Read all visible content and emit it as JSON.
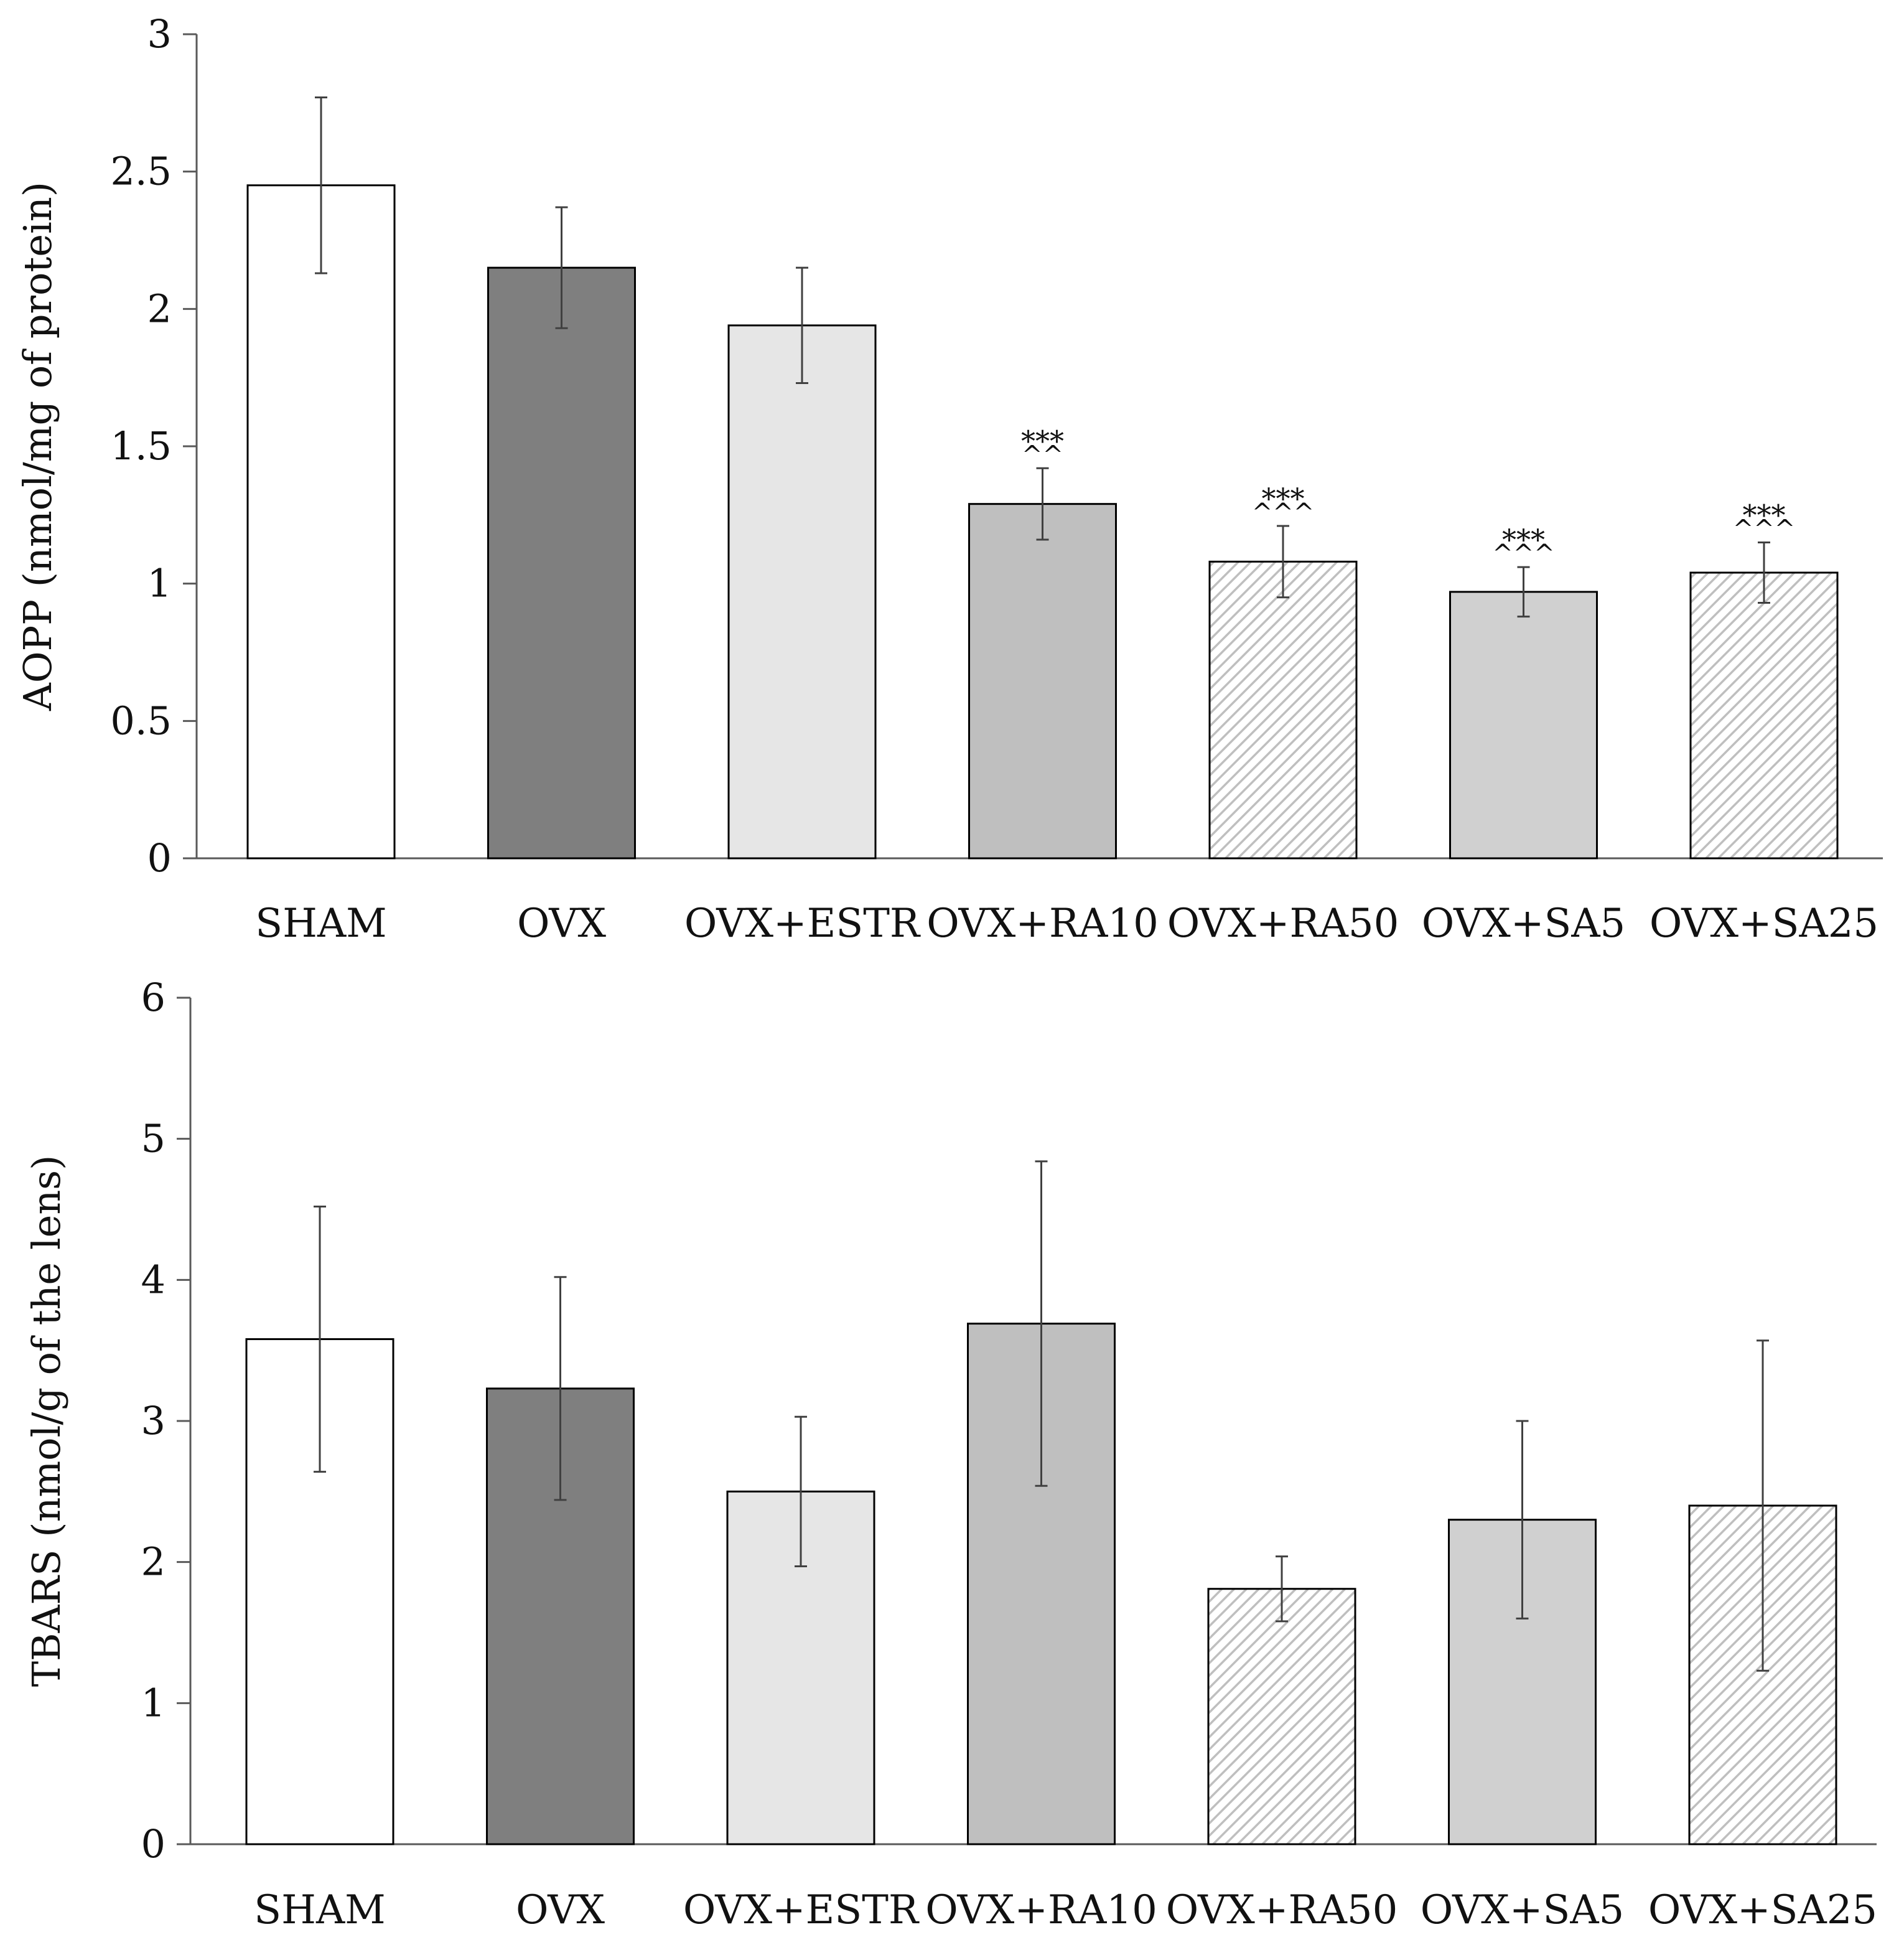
{
  "chart_data": [
    {
      "type": "bar",
      "ylabel": "AOPP (nmol/mg of protein)",
      "xlabel": "",
      "ylim": [
        0,
        3
      ],
      "yticks": [
        0,
        0.5,
        1,
        1.5,
        2,
        2.5,
        3
      ],
      "ytick_labels": [
        "0",
        "0.5",
        "1",
        "1.5",
        "2",
        "2.5",
        "3"
      ],
      "categories": [
        "SHAM",
        "OVX",
        "OVX+ESTR",
        "OVX+RA10",
        "OVX+RA50",
        "OVX+SA5",
        "OVX+SA25"
      ],
      "values": [
        2.45,
        2.15,
        1.94,
        1.29,
        1.08,
        0.97,
        1.04
      ],
      "errors": [
        0.32,
        0.22,
        0.21,
        0.13,
        0.13,
        0.09,
        0.11
      ],
      "significance": [
        "",
        "",
        "",
        "***",
        "***",
        "***",
        "***"
      ],
      "significance_vs_ovx": [
        "",
        "",
        "",
        "^^",
        "^^^",
        "^^^",
        "^^^"
      ]
    },
    {
      "type": "bar",
      "ylabel": "TBARS (nmol/g of the lens)",
      "xlabel": "",
      "ylim": [
        0,
        6
      ],
      "yticks": [
        0,
        1,
        2,
        3,
        4,
        5,
        6
      ],
      "ytick_labels": [
        "0",
        "1",
        "2",
        "3",
        "4",
        "5",
        "6"
      ],
      "categories": [
        "SHAM",
        "OVX",
        "OVX+ESTR",
        "OVX+RA10",
        "OVX+RA50",
        "OVX+SA5",
        "OVX+SA25"
      ],
      "values": [
        3.58,
        3.23,
        2.5,
        3.69,
        1.81,
        2.3,
        2.4
      ],
      "errors": [
        0.94,
        0.79,
        0.53,
        1.15,
        0.23,
        0.7,
        1.17
      ],
      "significance": [
        "",
        "",
        "",
        "",
        "",
        "",
        ""
      ],
      "significance_vs_ovx": [
        "",
        "",
        "",
        "",
        "",
        "",
        ""
      ]
    }
  ],
  "bar_styles": [
    {
      "fill": "#ffffff",
      "hatch": false
    },
    {
      "fill": "#7f7f7f",
      "hatch": false
    },
    {
      "fill": "#e6e6e6",
      "hatch": false
    },
    {
      "fill": "#bfbfbf",
      "hatch": false
    },
    {
      "fill": "#ffffff",
      "hatch": true
    },
    {
      "fill": "#d0d0d0",
      "hatch": false
    },
    {
      "fill": "#ffffff",
      "hatch": true
    }
  ],
  "colors": {
    "axis": "#595959",
    "bar_stroke": "#000000",
    "error_bar": "#404040",
    "hatch_line": "#bfbfbf"
  }
}
